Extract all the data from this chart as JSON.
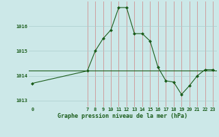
{
  "x": [
    0,
    7,
    8,
    9,
    10,
    11,
    12,
    13,
    14,
    15,
    16,
    17,
    18,
    19,
    20,
    21,
    22,
    23
  ],
  "y": [
    1013.7,
    1014.2,
    1015.0,
    1015.5,
    1015.85,
    1016.75,
    1016.75,
    1015.7,
    1015.7,
    1015.4,
    1014.35,
    1013.8,
    1013.75,
    1013.25,
    1013.6,
    1014.0,
    1014.25,
    1014.25
  ],
  "background_color": "#cce8e8",
  "line_color": "#1a5c1a",
  "marker_color": "#1a5c1a",
  "vgrid_color": "#d08080",
  "hgrid_color": "#aacccc",
  "xlabel": "Graphe pression niveau de la mer (hPa)",
  "ylim": [
    1012.75,
    1017.0
  ],
  "xlim": [
    -0.5,
    23.5
  ],
  "yticks": [
    1013,
    1014,
    1015,
    1016
  ],
  "ytick_labels": [
    "1013",
    "1014",
    "1015",
    "1016"
  ],
  "xticks": [
    0,
    7,
    8,
    9,
    10,
    11,
    12,
    13,
    14,
    15,
    16,
    17,
    18,
    19,
    20,
    21,
    22,
    23
  ],
  "xtick_labels": [
    "0",
    "7",
    "8",
    "9",
    "10",
    "11",
    "12",
    "13",
    "14",
    "15",
    "16",
    "17",
    "18",
    "19",
    "20",
    "21",
    "22",
    "23"
  ],
  "hline_y": 1014.2,
  "hline_color": "#1a5c1a",
  "vgrid_x": [
    7,
    8,
    9,
    10,
    11,
    12,
    13,
    14,
    15,
    16,
    17,
    18,
    19,
    20,
    21,
    22,
    23
  ]
}
